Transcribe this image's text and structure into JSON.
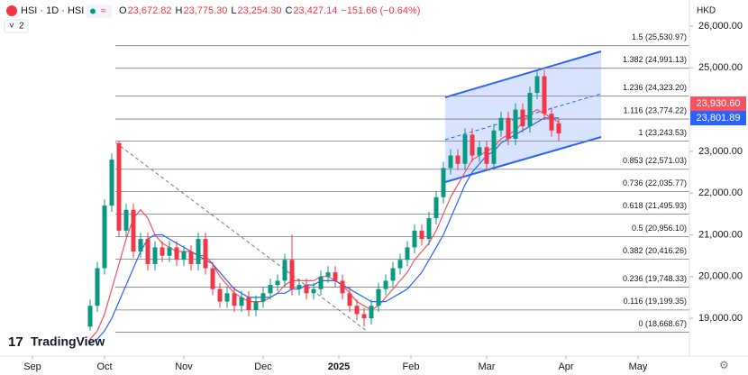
{
  "header": {
    "symbol": "HSI · 1D · HSI",
    "ohlc": [
      {
        "key": "O",
        "value": "23,672.82"
      },
      {
        "key": "H",
        "value": "23,775.30"
      },
      {
        "key": "L",
        "value": "23,254.30"
      },
      {
        "key": "C",
        "value": "23,427.14"
      }
    ],
    "change": "−151.66 (−0.64%)",
    "indicators": "2",
    "currency": "HKD",
    "logo": "TradingView"
  },
  "chart_data": {
    "type": "candlestick",
    "up_color": "#089981",
    "down_color": "#f23645",
    "open": [
      18800,
      19300,
      20200,
      21700,
      23200,
      21100,
      21600,
      20600,
      20900,
      20300,
      20700,
      20500,
      20700,
      20400,
      20600,
      20300,
      20900,
      20200,
      19700,
      19400,
      19600,
      19300,
      19500,
      19200,
      19400,
      19600,
      19800,
      19900,
      20400,
      19700,
      19800,
      19600,
      19700,
      20000,
      20100,
      19900,
      19600,
      19300,
      19100,
      19000,
      19300,
      19700,
      19900,
      20200,
      20400,
      20700,
      21100,
      20900,
      21400,
      21900,
      22600,
      22900,
      22700,
      23400,
      22900,
      23100,
      22700,
      23500,
      23800,
      23300,
      24000,
      23600,
      24400,
      24800,
      23900,
      23672.82
    ],
    "high": [
      19450,
      20350,
      21850,
      22950,
      23250,
      21750,
      21750,
      21050,
      21050,
      20850,
      20850,
      20850,
      20850,
      20750,
      20750,
      21050,
      21050,
      20350,
      19850,
      19750,
      19750,
      19650,
      19650,
      19550,
      19750,
      19950,
      20050,
      20550,
      21000,
      19950,
      19950,
      19850,
      20150,
      20250,
      20250,
      20050,
      19750,
      19450,
      19250,
      19450,
      19850,
      20050,
      20350,
      20550,
      20850,
      21250,
      21250,
      21550,
      22050,
      22750,
      23050,
      23050,
      23550,
      23550,
      23250,
      23250,
      23650,
      23950,
      23950,
      24150,
      24150,
      24550,
      24950,
      24950,
      24050,
      23775.3
    ],
    "low": [
      18700,
      19150,
      20050,
      21550,
      20950,
      20950,
      20450,
      20450,
      20150,
      20150,
      20350,
      20350,
      20250,
      20250,
      20150,
      20150,
      20050,
      19550,
      19250,
      19250,
      19150,
      19150,
      19050,
      19050,
      19250,
      19450,
      19650,
      19750,
      19550,
      19550,
      19450,
      19450,
      19550,
      19850,
      19750,
      19450,
      19150,
      18950,
      18800,
      18850,
      19150,
      19550,
      19750,
      20050,
      20250,
      20550,
      20750,
      20750,
      21250,
      21750,
      22450,
      22550,
      22550,
      22750,
      22750,
      22550,
      22550,
      23350,
      23150,
      23150,
      23450,
      23450,
      24250,
      23750,
      23350,
      23254.3
    ],
    "close": [
      19300,
      20200,
      21700,
      22800,
      21100,
      21600,
      20600,
      20900,
      20300,
      20700,
      20500,
      20700,
      20400,
      20600,
      20300,
      20900,
      20200,
      19700,
      19400,
      19600,
      19300,
      19500,
      19200,
      19400,
      19600,
      19800,
      19900,
      20400,
      19700,
      19800,
      19600,
      19700,
      20000,
      20100,
      19900,
      19600,
      19300,
      19100,
      19000,
      19300,
      19700,
      19900,
      20200,
      20400,
      20700,
      21100,
      20900,
      21400,
      21900,
      22600,
      22900,
      22700,
      23400,
      22900,
      23100,
      22700,
      23500,
      23800,
      23300,
      24000,
      23600,
      24400,
      24800,
      23900,
      23500,
      23427.14
    ],
    "series": [
      {
        "color": "#f7525f",
        "values": [
          18500,
          18700,
          19100,
          19700,
          20300,
          20900,
          21400,
          21600,
          21400,
          21000,
          20800,
          20700,
          20600,
          20600,
          20600,
          20500,
          20500,
          20300,
          20000,
          19800,
          19600,
          19500,
          19400,
          19400,
          19400,
          19500,
          19600,
          19800,
          19900,
          19900,
          19900,
          19900,
          20000,
          20000,
          19900,
          19800,
          19600,
          19400,
          19300,
          19200,
          19300,
          19500,
          19700,
          19900,
          20100,
          20400,
          20600,
          20800,
          21100,
          21500,
          21900,
          22200,
          22500,
          22800,
          22900,
          23000,
          23100,
          23300,
          23400,
          23500,
          23700,
          23900,
          24000,
          23900,
          23800,
          23700
        ]
      },
      {
        "color": "#2962ff",
        "values": [
          18400,
          18500,
          18700,
          19000,
          19400,
          19800,
          20200,
          20600,
          20900,
          21000,
          21000,
          20900,
          20800,
          20700,
          20600,
          20500,
          20400,
          20300,
          20100,
          19900,
          19700,
          19600,
          19500,
          19500,
          19500,
          19500,
          19600,
          19600,
          19700,
          19700,
          19800,
          19800,
          19900,
          19900,
          19900,
          19800,
          19700,
          19600,
          19500,
          19400,
          19400,
          19400,
          19500,
          19600,
          19700,
          19900,
          20100,
          20400,
          20700,
          21000,
          21400,
          21800,
          22200,
          22500,
          22700,
          22900,
          23000,
          23200,
          23300,
          23400,
          23500,
          23600,
          23700,
          23800,
          23800,
          23800
        ]
      }
    ],
    "xlim": [
      -12.5,
      83.125
    ],
    "xticks": [
      {
        "value": -8,
        "label": "Sep"
      },
      {
        "value": 2,
        "label": "Oct"
      },
      {
        "value": 13,
        "label": "Nov"
      },
      {
        "value": 24,
        "label": "Dec"
      },
      {
        "value": 34.5,
        "label": "2025"
      },
      {
        "value": 44.5,
        "label": "Feb"
      },
      {
        "value": 55,
        "label": "Mar"
      },
      {
        "value": 66,
        "label": "Apr"
      },
      {
        "value": 76,
        "label": "May"
      }
    ],
    "ylim": [
      18095,
      26626
    ],
    "yticks": [
      {
        "value": 26000,
        "label": "26,000.00"
      },
      {
        "value": 25000,
        "label": "25,000.00"
      },
      {
        "value": 24000,
        "label": "24,000.00"
      },
      {
        "value": 23000,
        "label": "23,000.00"
      },
      {
        "value": 22000,
        "label": "22,000.00"
      },
      {
        "value": 21000,
        "label": "21,000.00"
      },
      {
        "value": 20000,
        "label": "20,000.00"
      },
      {
        "value": 19000,
        "label": "19,000.00"
      }
    ],
    "fib_levels": [
      {
        "value": 25530.97,
        "label": "1.5 (25,530.97)"
      },
      {
        "value": 24991.13,
        "label": "1.382 (24,991.13)"
      },
      {
        "value": 24323.2,
        "label": "1.236 (24,323.20)"
      },
      {
        "value": 23774.22,
        "label": "1.116 (23,774.22)"
      },
      {
        "value": 23243.53,
        "label": "1 (23,243.53)"
      },
      {
        "value": 22571.03,
        "label": "0.853 (22,571.03)"
      },
      {
        "value": 22035.77,
        "label": "0.736 (22,035.77)"
      },
      {
        "value": 21495.93,
        "label": "0.618 (21,495.93)"
      },
      {
        "value": 20956.1,
        "label": "0.5 (20,956.10)"
      },
      {
        "value": 20416.26,
        "label": "0.382 (20,416.26)"
      },
      {
        "value": 19748.33,
        "label": "0.236 (19,748.33)"
      },
      {
        "value": 19199.35,
        "label": "0.116 (19,199.35)"
      },
      {
        "value": 18668.67,
        "label": "0 (18,668.67)"
      }
    ],
    "price_tags": [
      {
        "value": 23930.6,
        "label": "23,930.60"
      },
      {
        "value": 23801.89,
        "label": "23,801.89"
      }
    ]
  }
}
